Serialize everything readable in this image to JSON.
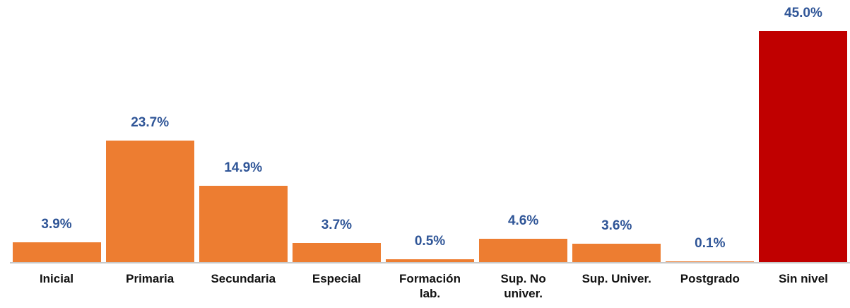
{
  "chart_data": {
    "type": "bar",
    "categories": [
      "Inicial",
      "Primaria",
      "Secundaria",
      "Especial",
      "Formación lab.",
      "Sup. No univer.",
      "Sup. Univer.",
      "Postgrado",
      "Sin nivel"
    ],
    "values": [
      3.9,
      23.7,
      14.9,
      3.7,
      0.5,
      4.6,
      3.6,
      0.1,
      45.0
    ],
    "value_labels": [
      "3.9%",
      "23.7%",
      "14.9%",
      "3.7%",
      "0.5%",
      "4.6%",
      "3.6%",
      "0.1%",
      "45.0%"
    ],
    "colors": [
      "#ed7d31",
      "#ed7d31",
      "#ed7d31",
      "#ed7d31",
      "#ed7d31",
      "#ed7d31",
      "#ed7d31",
      "#ed7d31",
      "#c00000"
    ]
  }
}
